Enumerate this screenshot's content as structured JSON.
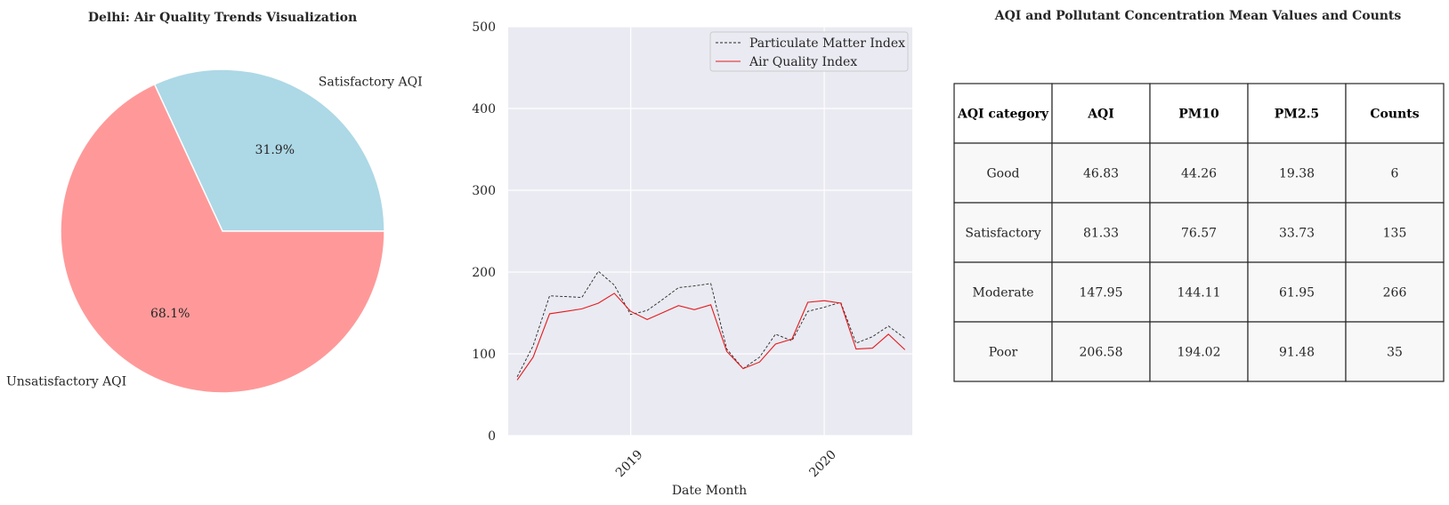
{
  "chart_data": [
    {
      "type": "pie",
      "title": "Delhi: Air Quality Trends Visualization",
      "labels": [
        "Satisfactory AQI",
        "Unsatisfactory AQI"
      ],
      "values": [
        31.9,
        68.1
      ],
      "pct_labels": [
        "31.9%",
        "68.1%"
      ],
      "colors": [
        "#add8e6",
        "#ff9999"
      ],
      "startangle_deg": 0,
      "direction": "counterclockwise"
    },
    {
      "type": "line",
      "title": "",
      "xlabel": "Date Month",
      "ylabel": "",
      "ylim": [
        0,
        500
      ],
      "yticks": [
        0,
        100,
        200,
        300,
        400,
        500
      ],
      "xlim": [
        "2018-05-15",
        "2020-06-15"
      ],
      "xticks": [
        {
          "date": "2019-01-01",
          "label": "2019"
        },
        {
          "date": "2020-01-01",
          "label": "2020"
        }
      ],
      "x": [
        "2018-06",
        "2018-07",
        "2018-08",
        "2018-09",
        "2018-10",
        "2018-11",
        "2018-12",
        "2019-01",
        "2019-02",
        "2019-03",
        "2019-04",
        "2019-05",
        "2019-06",
        "2019-07",
        "2019-08",
        "2019-09",
        "2019-10",
        "2019-11",
        "2019-12",
        "2020-01",
        "2020-02",
        "2020-03",
        "2020-04",
        "2020-05",
        "2020-06"
      ],
      "series": [
        {
          "name": "Particulate Matter Index",
          "color": "#262626",
          "style": "dashed",
          "values": [
            72,
            110,
            171,
            170,
            169,
            201,
            184,
            148,
            153,
            166,
            181,
            183,
            186,
            106,
            82,
            96,
            124,
            116,
            152,
            157,
            163,
            113,
            121,
            134,
            119
          ]
        },
        {
          "name": "Air Quality Index",
          "color": "#e41a1c",
          "style": "solid",
          "values": [
            68,
            96,
            149,
            152,
            155,
            162,
            174,
            152,
            142,
            150,
            159,
            154,
            160,
            103,
            82,
            90,
            112,
            118,
            163,
            165,
            162,
            106,
            107,
            124,
            105
          ]
        }
      ],
      "grid": true,
      "legend": "top-right"
    },
    {
      "type": "table",
      "title": "AQI and Pollutant Concentration Mean Values and Counts",
      "columns": [
        "AQI category",
        "AQI",
        "PM10",
        "PM2.5",
        "Counts"
      ],
      "rows": [
        [
          "Good",
          "46.83",
          "44.26",
          "19.38",
          "6"
        ],
        [
          "Satisfactory",
          "81.33",
          "76.57",
          "33.73",
          "135"
        ],
        [
          "Moderate",
          "147.95",
          "144.11",
          "61.95",
          "266"
        ],
        [
          "Poor",
          "206.58",
          "194.02",
          "91.48",
          "35"
        ]
      ]
    }
  ]
}
